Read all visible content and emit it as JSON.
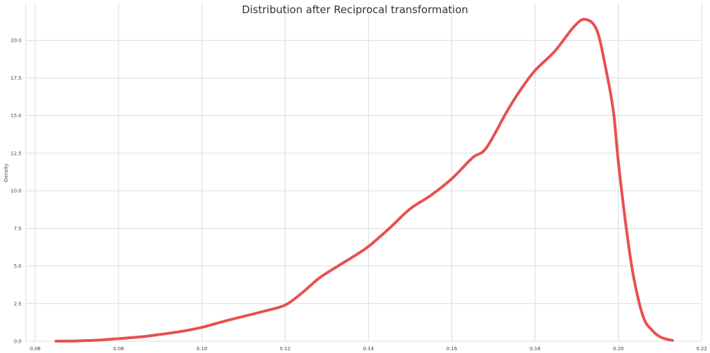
{
  "chart_data": {
    "type": "line",
    "title": "Distribution after Reciprocal transformation",
    "xlabel": "",
    "ylabel": "Density",
    "xlim": [
      0.0577,
      0.22
    ],
    "ylim": [
      0,
      22.5
    ],
    "grid": true,
    "x_ticks": [
      "0.06",
      "0.08",
      "0.10",
      "0.12",
      "0.14",
      "0.16",
      "0.18",
      "0.20",
      "0.22"
    ],
    "x_tick_values": [
      0.06,
      0.08,
      0.1,
      0.12,
      0.14,
      0.16,
      0.18,
      0.2,
      0.22
    ],
    "y_ticks": [
      "0.0",
      "2.5",
      "5.0",
      "7.5",
      "10.0",
      "12.5",
      "15.0",
      "17.5",
      "20.0"
    ],
    "y_tick_values": [
      0,
      2.5,
      5,
      7.5,
      10,
      12.5,
      15,
      17.5,
      20
    ],
    "line_color": "#e8504f",
    "series": [
      {
        "x": [
          0.065,
          0.07,
          0.075,
          0.08,
          0.085,
          0.09,
          0.095,
          0.1,
          0.105,
          0.11,
          0.115,
          0.12,
          0.124,
          0.1282,
          0.1327,
          0.1368,
          0.14,
          0.145,
          0.15,
          0.155,
          0.16,
          0.165,
          0.1683,
          0.1733,
          0.1765,
          0.18,
          0.1848,
          0.1893,
          0.192,
          0.1948,
          0.197,
          0.1988,
          0.2,
          0.202,
          0.2037,
          0.206,
          0.2082,
          0.2103,
          0.213
        ],
        "y": [
          0.0,
          0.02,
          0.07,
          0.17,
          0.28,
          0.45,
          0.65,
          0.92,
          1.3,
          1.65,
          2.0,
          2.4,
          3.2,
          4.2,
          5.0,
          5.7,
          6.3,
          7.5,
          8.8,
          9.7,
          10.8,
          12.2,
          12.85,
          15.3,
          16.7,
          18.0,
          19.3,
          20.9,
          21.4,
          20.7,
          18.1,
          15.3,
          11.9,
          7.3,
          4.2,
          1.6,
          0.7,
          0.25,
          0.05
        ]
      }
    ]
  }
}
